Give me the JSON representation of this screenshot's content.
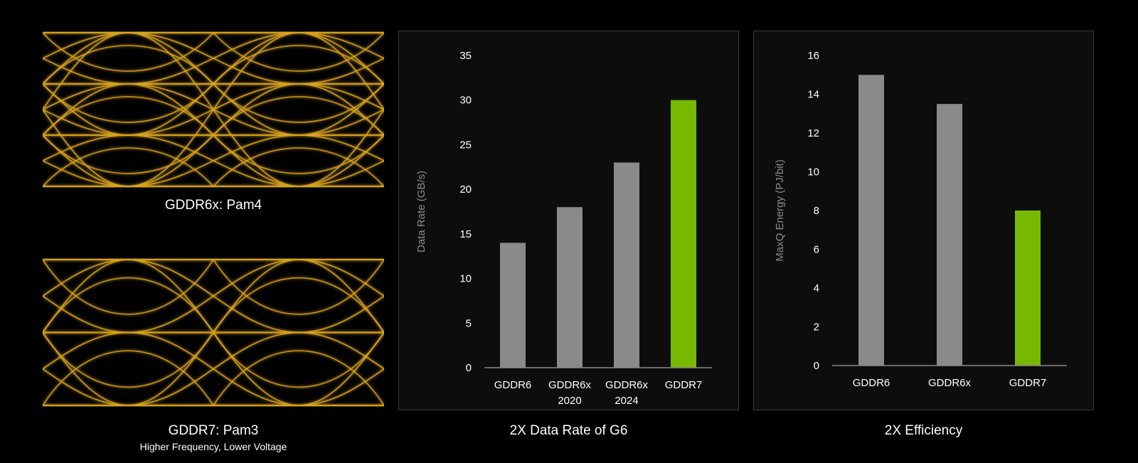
{
  "eye_diagrams": [
    {
      "caption": "GDDR6x: Pam4",
      "levels": 4
    },
    {
      "caption": "GDDR7: Pam3",
      "subcaption": "Higher Frequency, Lower Voltage",
      "levels": 3
    }
  ],
  "colors": {
    "eye": "#d9a520",
    "gray_bar": "#8a8a8a",
    "green_bar": "#76b900",
    "axis_title": "#8c8c8c"
  },
  "chart_data": [
    {
      "type": "bar",
      "caption": "2X Data Rate of G6",
      "categories": [
        [
          "GDDR6"
        ],
        [
          "GDDR6x",
          "2020"
        ],
        [
          "GDDR6x",
          "2024"
        ],
        [
          "GDDR7"
        ]
      ],
      "values": [
        14,
        18,
        23,
        30
      ],
      "highlight": [
        false,
        false,
        false,
        true
      ],
      "ylabel": "Data Rate (GB/s)",
      "ylim": [
        0,
        35
      ],
      "yticks": [
        0,
        5,
        10,
        15,
        20,
        25,
        30,
        35
      ],
      "grid": false
    },
    {
      "type": "bar",
      "caption": "2X Efficiency",
      "categories": [
        [
          "GDDR6"
        ],
        [
          "GDDR6x"
        ],
        [
          "GDDR7"
        ]
      ],
      "values": [
        15,
        13.5,
        8
      ],
      "highlight": [
        false,
        false,
        true
      ],
      "ylabel": "MaxQ Energy (PJ/bit)",
      "ylim": [
        0,
        16
      ],
      "yticks": [
        0,
        2,
        4,
        6,
        8,
        10,
        12,
        14,
        16
      ],
      "grid": false
    }
  ]
}
